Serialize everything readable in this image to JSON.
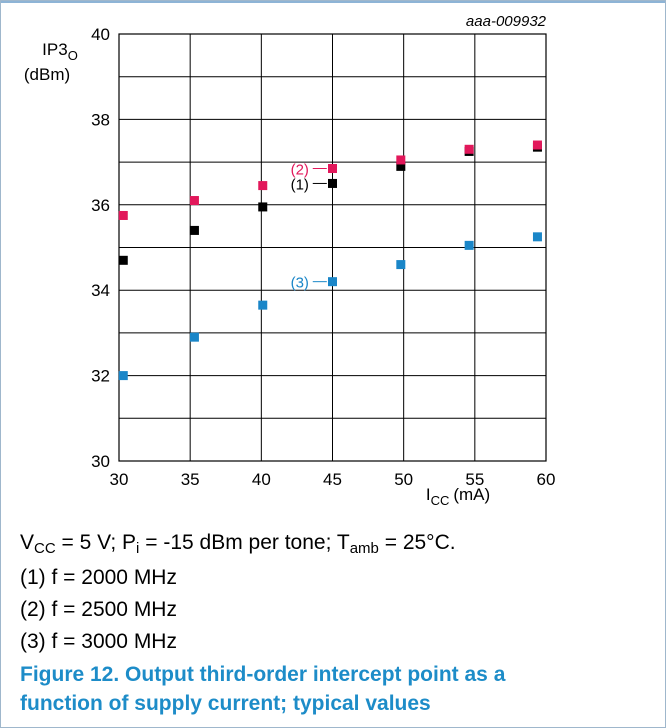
{
  "chart_data": {
    "type": "scatter",
    "title": "",
    "figure_id": "aaa-009932",
    "y_label": {
      "main": "IP3",
      "sub": "O",
      "unit": "(dBm)"
    },
    "x_label": {
      "main": "I",
      "sub": "CC",
      "unit": "(mA)"
    },
    "xlim": [
      30,
      60
    ],
    "ylim": [
      30,
      40
    ],
    "x_ticks": [
      "30",
      "35",
      "40",
      "45",
      "50",
      "55",
      "60"
    ],
    "y_ticks": [
      "30",
      "32",
      "34",
      "36",
      "38",
      "40"
    ],
    "grid": true,
    "series": [
      {
        "name": "(1)",
        "color": "#000000",
        "x": [
          30.3,
          35.3,
          40.1,
          45.0,
          49.8,
          54.6,
          59.4
        ],
        "y": [
          34.7,
          35.4,
          35.95,
          36.5,
          36.9,
          37.25,
          37.35
        ]
      },
      {
        "name": "(2)",
        "color": "#e2185b",
        "x": [
          30.3,
          35.3,
          40.1,
          45.0,
          49.8,
          54.6,
          59.4
        ],
        "y": [
          35.75,
          36.1,
          36.45,
          36.85,
          37.05,
          37.3,
          37.4
        ]
      },
      {
        "name": "(3)",
        "color": "#1a86c8",
        "x": [
          30.3,
          35.3,
          40.1,
          45.0,
          49.8,
          54.6,
          59.4
        ],
        "y": [
          32.0,
          32.9,
          33.65,
          34.2,
          34.6,
          35.05,
          35.25
        ]
      }
    ],
    "annotations": [
      {
        "text": "(1)",
        "color": "#000000",
        "x": 42.7,
        "y": 36.5
      },
      {
        "text": "(2)",
        "color": "#e2185b",
        "x": 42.7,
        "y": 36.85
      },
      {
        "text": "(3)",
        "color": "#1a86c8",
        "x": 42.7,
        "y": 34.2
      }
    ]
  },
  "caption": {
    "conditions": {
      "v": "V",
      "v_sub": "CC",
      "v_rest": " = 5 V; P",
      "p_sub": "i",
      "p_rest": " = -15 dBm per tone; T",
      "t_sub": "amb",
      "t_rest": " = 25°C."
    },
    "notes": [
      "(1) f = 2000 MHz",
      "(2) f = 2500 MHz",
      "(3) f = 3000 MHz"
    ],
    "figure_title": "Figure 12.  Output third-order intercept point as a function of supply current; typical values"
  }
}
